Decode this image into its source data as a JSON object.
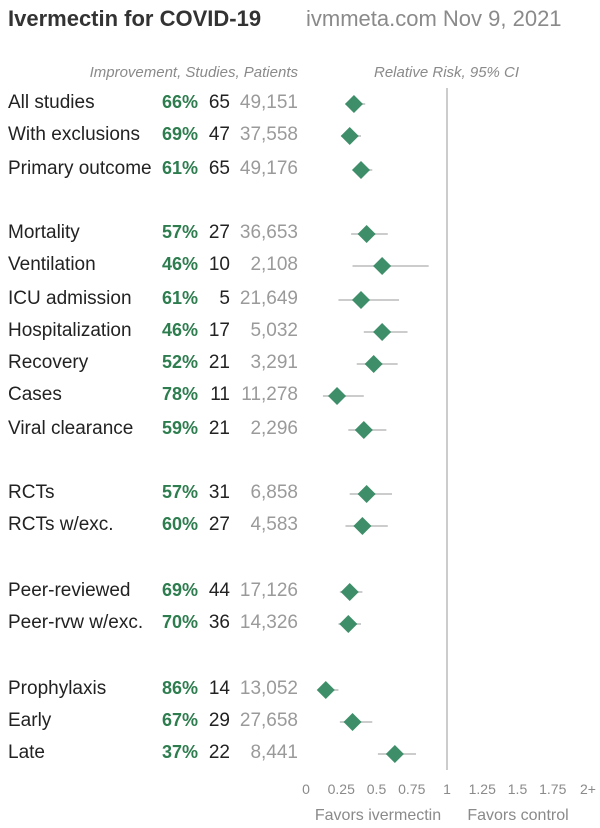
{
  "title": "Ivermectin for COVID-19",
  "subtitle": "ivmmeta.com Nov 9, 2021",
  "left_header": "Improvement, Studies, Patients",
  "right_header": "Relative Risk, 95% CI",
  "colors": {
    "marker": "#3e8e69",
    "ci": "#cccccc",
    "improvement": "#2e7d4f",
    "refline": "#cccccc"
  },
  "chart_data": {
    "type": "forest",
    "xlim": [
      0,
      2
    ],
    "x_ticks": [
      "0",
      "0.25",
      "0.5",
      "0.75",
      "1",
      "1.25",
      "1.5",
      "1.75",
      "2+"
    ],
    "x_tick_values": [
      0,
      0.25,
      0.5,
      0.75,
      1,
      1.25,
      1.5,
      1.75,
      2
    ],
    "reference_line": 1,
    "favors_left": "Favors ivermectin",
    "favors_right": "Favors control",
    "rows": [
      {
        "label": "All studies",
        "improvement": "66%",
        "studies": "65",
        "patients": "49,151",
        "rr": 0.34,
        "lo": 0.28,
        "hi": 0.42
      },
      {
        "label": "With exclusions",
        "improvement": "69%",
        "studies": "47",
        "patients": "37,558",
        "rr": 0.31,
        "lo": 0.25,
        "hi": 0.39
      },
      {
        "label": "Primary outcome",
        "improvement": "61%",
        "studies": "65",
        "patients": "49,176",
        "rr": 0.39,
        "lo": 0.33,
        "hi": 0.47
      },
      {
        "label": "Mortality",
        "improvement": "57%",
        "studies": "27",
        "patients": "36,653",
        "rr": 0.43,
        "lo": 0.32,
        "hi": 0.58
      },
      {
        "label": "Ventilation",
        "improvement": "46%",
        "studies": "10",
        "patients": "2,108",
        "rr": 0.54,
        "lo": 0.33,
        "hi": 0.87
      },
      {
        "label": "ICU admission",
        "improvement": "61%",
        "studies": "5",
        "patients": "21,649",
        "rr": 0.39,
        "lo": 0.23,
        "hi": 0.66
      },
      {
        "label": "Hospitalization",
        "improvement": "46%",
        "studies": "17",
        "patients": "5,032",
        "rr": 0.54,
        "lo": 0.41,
        "hi": 0.72
      },
      {
        "label": "Recovery",
        "improvement": "52%",
        "studies": "21",
        "patients": "3,291",
        "rr": 0.48,
        "lo": 0.36,
        "hi": 0.65
      },
      {
        "label": "Cases",
        "improvement": "78%",
        "studies": "11",
        "patients": "11,278",
        "rr": 0.22,
        "lo": 0.12,
        "hi": 0.41
      },
      {
        "label": "Viral clearance",
        "improvement": "59%",
        "studies": "21",
        "patients": "2,296",
        "rr": 0.41,
        "lo": 0.3,
        "hi": 0.57
      },
      {
        "label": "RCTs",
        "improvement": "57%",
        "studies": "31",
        "patients": "6,858",
        "rr": 0.43,
        "lo": 0.31,
        "hi": 0.61
      },
      {
        "label": "RCTs w/exc.",
        "improvement": "60%",
        "studies": "27",
        "patients": "4,583",
        "rr": 0.4,
        "lo": 0.28,
        "hi": 0.58
      },
      {
        "label": "Peer-reviewed",
        "improvement": "69%",
        "studies": "44",
        "patients": "17,126",
        "rr": 0.31,
        "lo": 0.24,
        "hi": 0.4
      },
      {
        "label": "Peer-rvw w/exc.",
        "improvement": "70%",
        "studies": "36",
        "patients": "14,326",
        "rr": 0.3,
        "lo": 0.23,
        "hi": 0.39
      },
      {
        "label": "Prophylaxis",
        "improvement": "86%",
        "studies": "14",
        "patients": "13,052",
        "rr": 0.14,
        "lo": 0.09,
        "hi": 0.23
      },
      {
        "label": "Early",
        "improvement": "67%",
        "studies": "29",
        "patients": "27,658",
        "rr": 0.33,
        "lo": 0.24,
        "hi": 0.47
      },
      {
        "label": "Late",
        "improvement": "37%",
        "studies": "22",
        "patients": "8,441",
        "rr": 0.63,
        "lo": 0.51,
        "hi": 0.78
      }
    ]
  }
}
